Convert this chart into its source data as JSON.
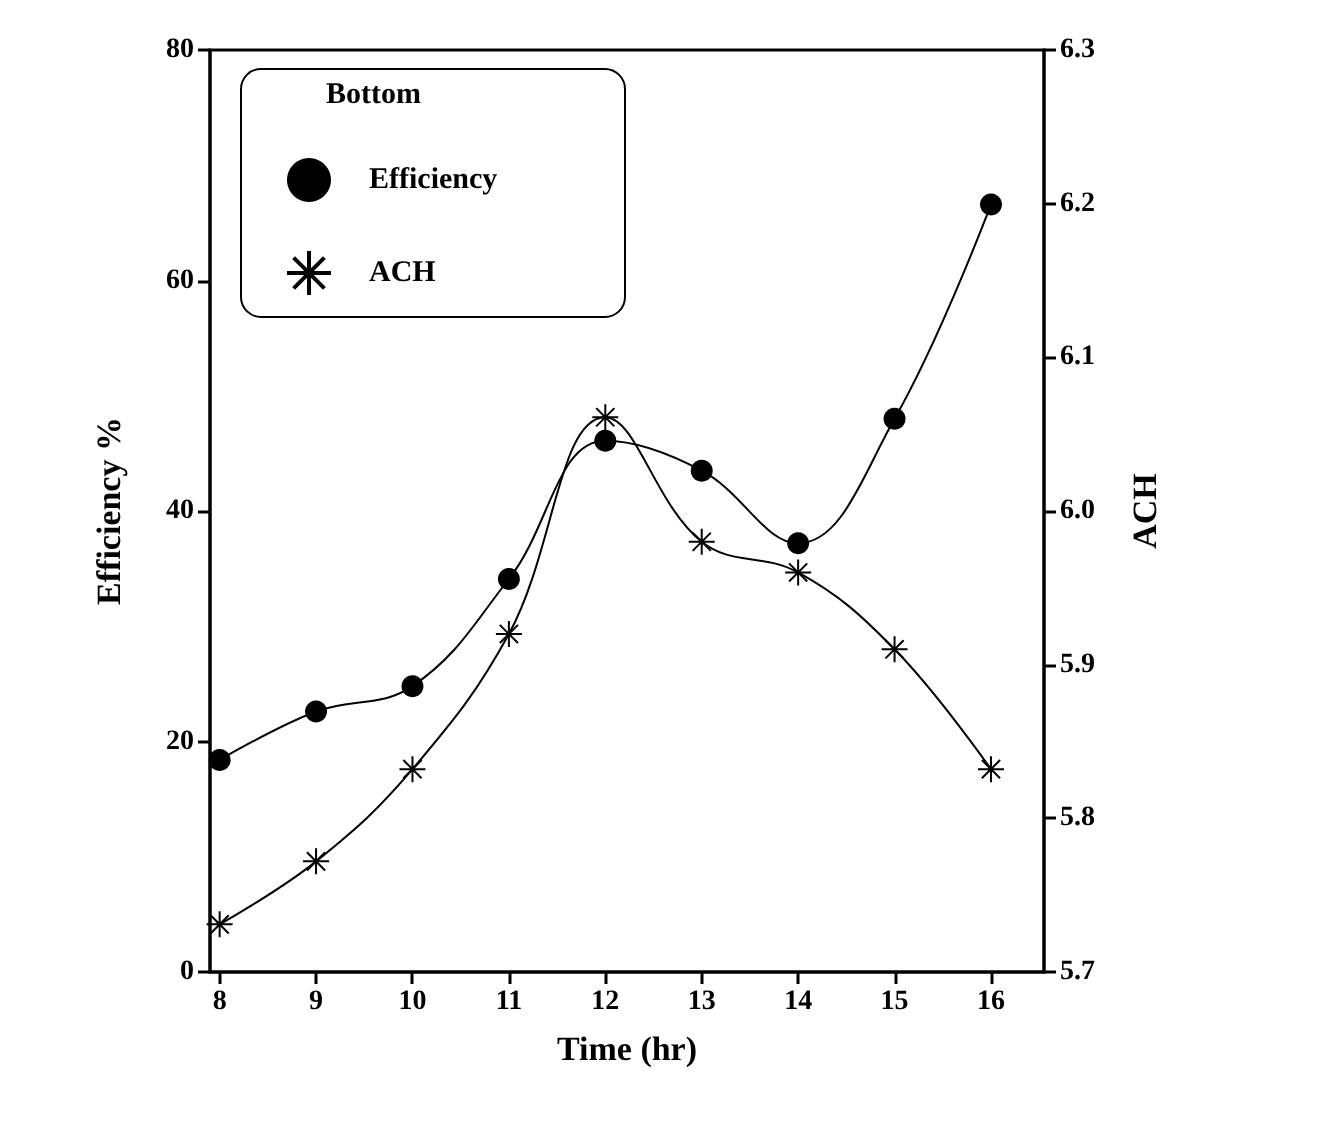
{
  "chart_data": {
    "type": "line",
    "xlabel": "Time (hr)",
    "ylabel": "Efficiency %",
    "y2label": "ACH",
    "legend_title": "Bottom",
    "legend": "top left",
    "grid": false,
    "x": [
      8,
      9,
      10,
      11,
      12,
      13,
      14,
      15,
      16
    ],
    "xlim": [
      7.9,
      16.55
    ],
    "xticks": [
      8,
      9,
      10,
      11,
      12,
      13,
      14,
      15,
      16
    ],
    "ylim": [
      0,
      80
    ],
    "yticks": [
      0,
      20,
      40,
      60,
      80
    ],
    "y2lim": [
      5.7,
      6.3
    ],
    "y2ticks": [
      5.7,
      5.8,
      5.9,
      {
        "value": 6,
        "label": "6.0"
      },
      6.1,
      6.2,
      6.3
    ],
    "series": [
      {
        "name": "Efficiency",
        "color": "#000000",
        "marker": "circle",
        "values": [
          18.4,
          22.6,
          24.8,
          34.1,
          46.1,
          43.5,
          37.2,
          48,
          66.6
        ]
      },
      {
        "name": "ACH",
        "color": "#000000",
        "marker": "cross",
        "axis": "y2",
        "values": [
          5.731,
          5.772,
          5.832,
          5.92,
          6.061,
          5.98,
          5.96,
          5.91,
          5.832
        ]
      }
    ]
  }
}
